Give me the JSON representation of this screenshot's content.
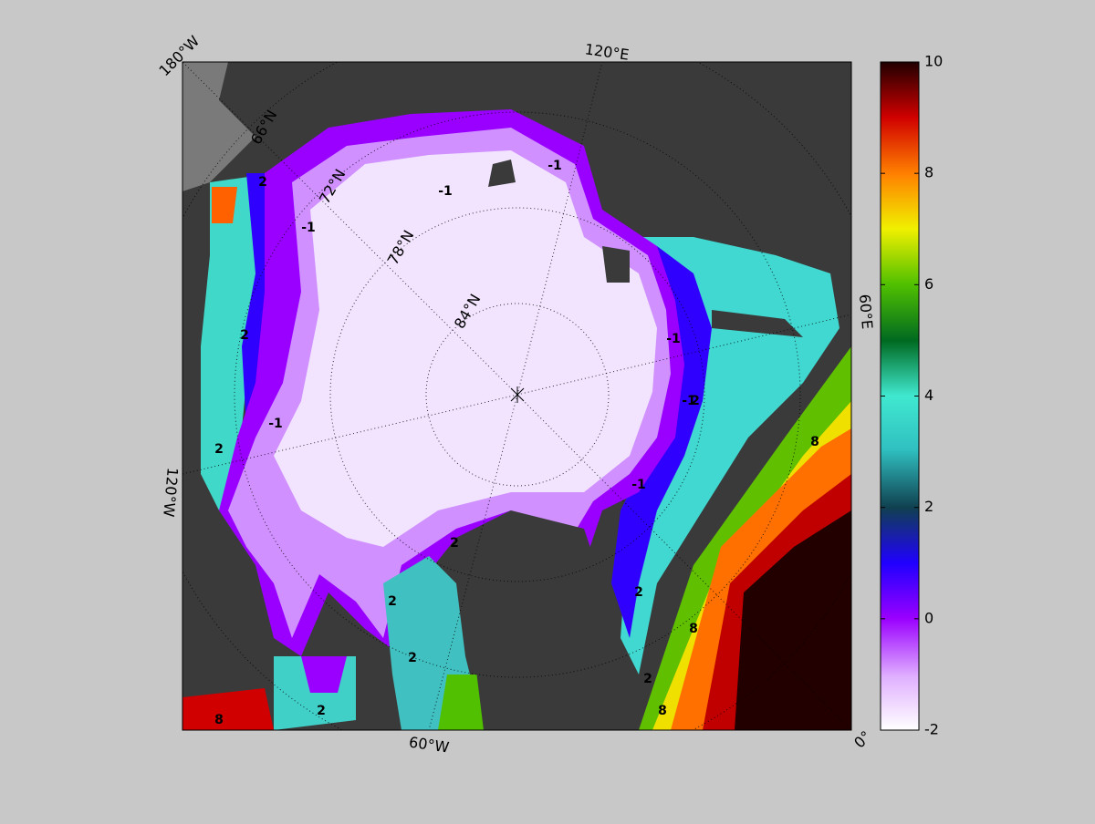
{
  "map": {
    "longitude_labels": [
      "180°W",
      "120°E",
      "60°E",
      "0°",
      "60°W",
      "120°W"
    ],
    "latitude_labels": [
      "66°N",
      "72°N",
      "78°N",
      "84°N"
    ],
    "contour_labels": [
      -1,
      -1,
      -1,
      -1,
      -1,
      -1,
      -1,
      2,
      2,
      2,
      2,
      2,
      2,
      2,
      2,
      2,
      2,
      8,
      8,
      8,
      8
    ]
  },
  "colorbar": {
    "range": [
      -2,
      10
    ],
    "ticks": [
      -2,
      0,
      2,
      4,
      6,
      8,
      10
    ]
  }
}
